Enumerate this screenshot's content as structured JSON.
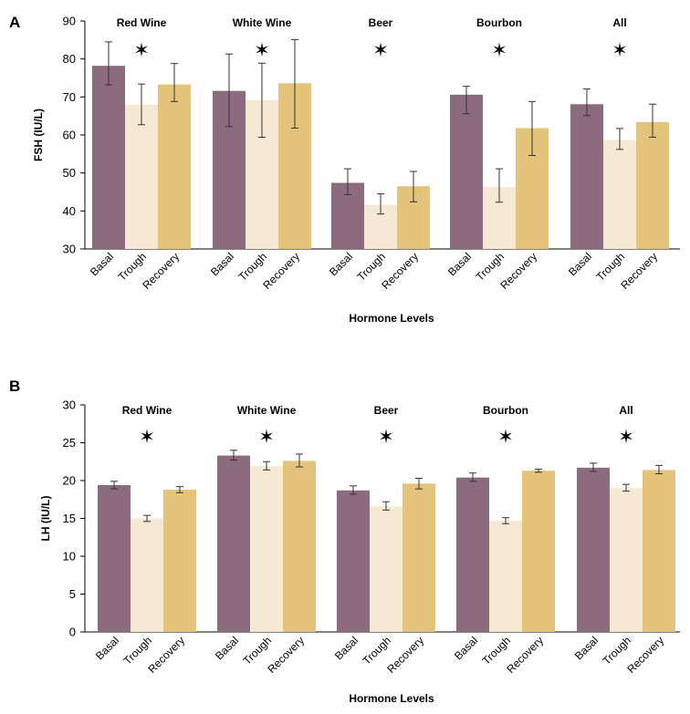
{
  "colors": {
    "basal": "#8b6b7d",
    "trough": "#f5e9d4",
    "recovery": "#e4c47a",
    "axis": "#000000"
  },
  "chart_data": [
    {
      "panel_label": "A",
      "type": "bar",
      "xlabel": "Hormone Levels",
      "ylabel": "FSH (IU/L)",
      "ylim": [
        30,
        90
      ],
      "yticks": [
        30,
        40,
        50,
        60,
        70,
        80,
        90
      ],
      "categories": [
        "Basal",
        "Trough",
        "Recovery"
      ],
      "star_glyph": "✶",
      "groups": [
        {
          "name": "Red Wine",
          "star": true,
          "values": [
            78.2,
            68.0,
            73.3
          ],
          "errors": [
            [
              73.2,
              84.5
            ],
            [
              62.7,
              73.4
            ],
            [
              68.8,
              78.8
            ]
          ]
        },
        {
          "name": "White Wine",
          "star": true,
          "values": [
            71.6,
            69.2,
            73.6
          ],
          "errors": [
            [
              62.2,
              81.3
            ],
            [
              59.4,
              78.9
            ],
            [
              61.8,
              85.1
            ]
          ]
        },
        {
          "name": "Beer",
          "star": true,
          "values": [
            47.4,
            41.6,
            46.5
          ],
          "errors": [
            [
              44.3,
              51.1
            ],
            [
              39.2,
              44.5
            ],
            [
              42.4,
              50.4
            ]
          ]
        },
        {
          "name": "Bourbon",
          "star": true,
          "values": [
            70.6,
            46.3,
            61.8
          ],
          "errors": [
            [
              65.6,
              72.8
            ],
            [
              42.3,
              51.1
            ],
            [
              54.6,
              68.8
            ]
          ]
        },
        {
          "name": "All",
          "star": true,
          "values": [
            68.1,
            58.7,
            63.4
          ],
          "errors": [
            [
              65.1,
              72.1
            ],
            [
              56.2,
              61.7
            ],
            [
              59.4,
              68.1
            ]
          ]
        }
      ]
    },
    {
      "panel_label": "B",
      "type": "bar",
      "xlabel": "Hormone Levels",
      "ylabel": "LH (IU/L)",
      "ylim": [
        0,
        30
      ],
      "yticks": [
        0,
        5,
        10,
        15,
        20,
        25,
        30
      ],
      "categories": [
        "Basal",
        "Trough",
        "Recovery"
      ],
      "star_glyph": "✶",
      "groups": [
        {
          "name": "Red Wine",
          "star": true,
          "values": [
            19.4,
            15.0,
            18.8
          ],
          "errors": [
            [
              18.9,
              19.9
            ],
            [
              14.6,
              15.4
            ],
            [
              18.4,
              19.2
            ]
          ]
        },
        {
          "name": "White Wine",
          "star": true,
          "values": [
            23.3,
            21.9,
            22.6
          ],
          "errors": [
            [
              22.7,
              24.0
            ],
            [
              21.4,
              22.5
            ],
            [
              21.8,
              23.5
            ]
          ]
        },
        {
          "name": "Beer",
          "star": true,
          "values": [
            18.7,
            16.6,
            19.6
          ],
          "errors": [
            [
              18.2,
              19.3
            ],
            [
              16.1,
              17.2
            ],
            [
              18.9,
              20.3
            ]
          ]
        },
        {
          "name": "Bourbon",
          "star": true,
          "values": [
            20.4,
            14.7,
            21.3
          ],
          "errors": [
            [
              19.9,
              21.0
            ],
            [
              14.3,
              15.1
            ],
            [
              21.1,
              21.5
            ]
          ]
        },
        {
          "name": "All",
          "star": true,
          "values": [
            21.7,
            19.0,
            21.4
          ],
          "errors": [
            [
              21.2,
              22.3
            ],
            [
              18.6,
              19.5
            ],
            [
              20.9,
              22.0
            ]
          ]
        }
      ]
    }
  ]
}
